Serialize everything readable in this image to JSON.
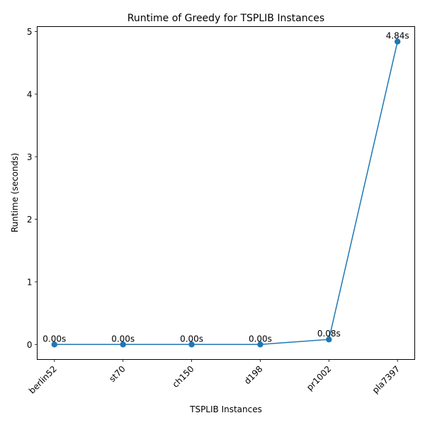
{
  "chart_data": {
    "type": "line",
    "title": "Runtime of Greedy for TSPLIB Instances",
    "xlabel": "TSPLIB Instances",
    "ylabel": "Runtime (seconds)",
    "categories": [
      "berlin52",
      "st70",
      "ch150",
      "d198",
      "pr1002",
      "pla7397"
    ],
    "series": [
      {
        "values": [
          0.0,
          0.0,
          0.0,
          0.0,
          0.08,
          4.84
        ],
        "labels": [
          "0.00s",
          "0.00s",
          "0.00s",
          "0.00s",
          "0.08s",
          "4.84s"
        ],
        "color": "#1f77b4",
        "marker": "circle"
      }
    ],
    "ylim": [
      -0.24,
      5.08
    ],
    "yticks": [
      0,
      1,
      2,
      3,
      4,
      5
    ],
    "ytick_labels": [
      "0",
      "1",
      "2",
      "3",
      "4",
      "5"
    ],
    "grid": false,
    "legend": "none"
  }
}
